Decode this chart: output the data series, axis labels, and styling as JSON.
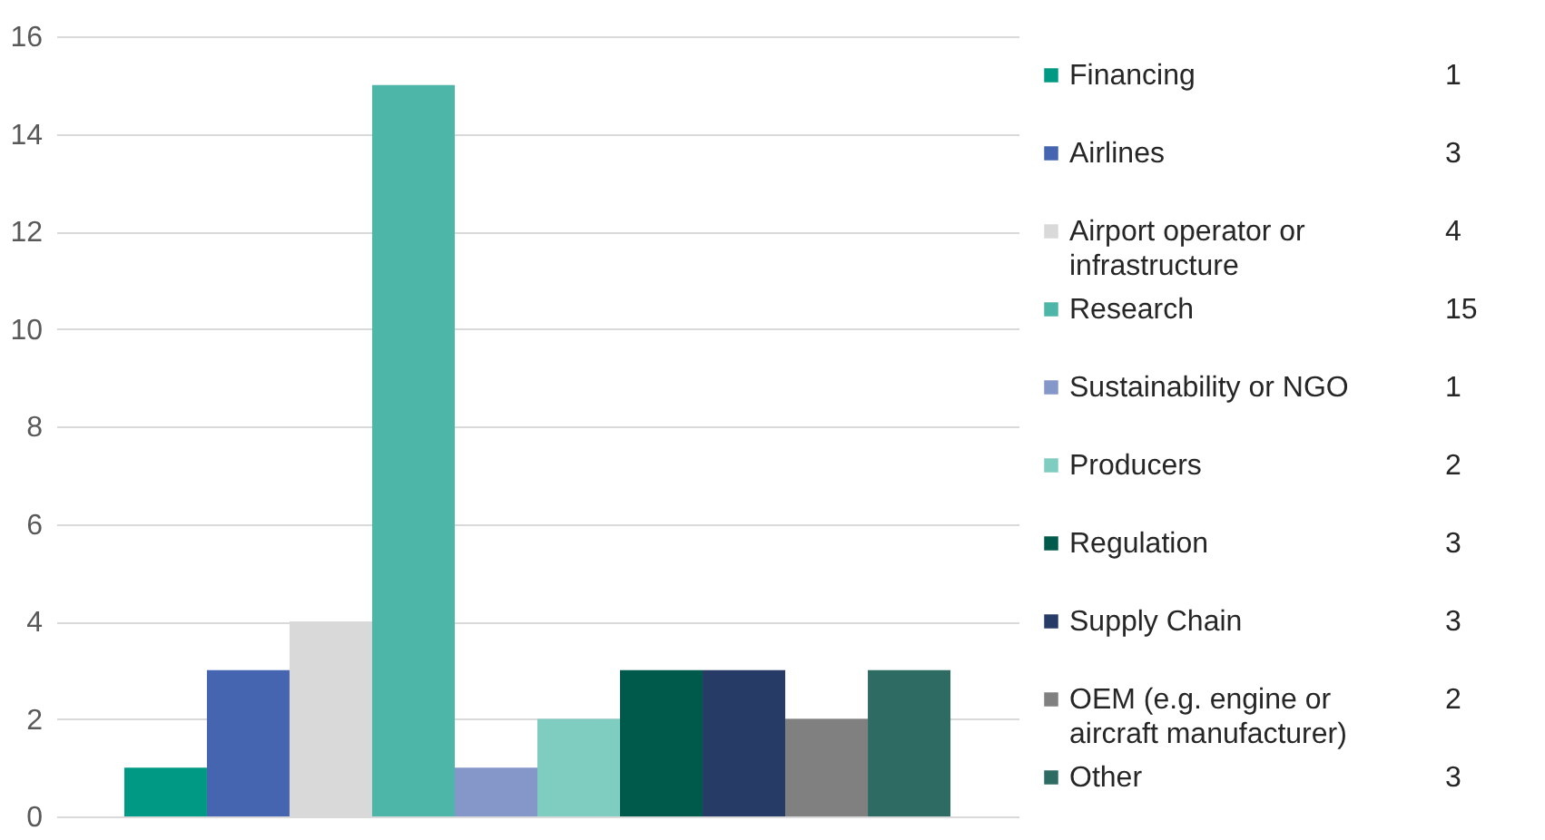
{
  "chart_data": {
    "type": "bar",
    "categories": [
      null
    ],
    "series": [
      {
        "name": "Financing",
        "color": "#009a84",
        "values": [
          1
        ]
      },
      {
        "name": "Airlines",
        "color": "#4565b0",
        "values": [
          3
        ]
      },
      {
        "name": "Airport operator or infrastructure",
        "color": "#d9d9d9",
        "values": [
          4
        ]
      },
      {
        "name": "Research",
        "color": "#4db6a8",
        "values": [
          15
        ]
      },
      {
        "name": "Sustainability or NGO",
        "color": "#8497c8",
        "values": [
          1
        ]
      },
      {
        "name": "Producers",
        "color": "#7fccc0",
        "values": [
          2
        ]
      },
      {
        "name": "Regulation",
        "color": "#005a4b",
        "values": [
          3
        ]
      },
      {
        "name": "Supply Chain",
        "color": "#263b66",
        "values": [
          3
        ]
      },
      {
        "name": "OEM (e.g. engine or aircraft manufacturer)",
        "color": "#808080",
        "values": [
          2
        ]
      },
      {
        "name": "Other",
        "color": "#2e6b62",
        "values": [
          3
        ]
      }
    ],
    "ylim": [
      0,
      16
    ],
    "yticks": [
      0,
      2,
      4,
      6,
      8,
      10,
      12,
      14,
      16
    ],
    "grid": "y",
    "legend": "right",
    "annotations": [
      "1",
      "3",
      "4",
      "15",
      "1",
      "2",
      "3",
      "3",
      "2",
      "3"
    ]
  }
}
